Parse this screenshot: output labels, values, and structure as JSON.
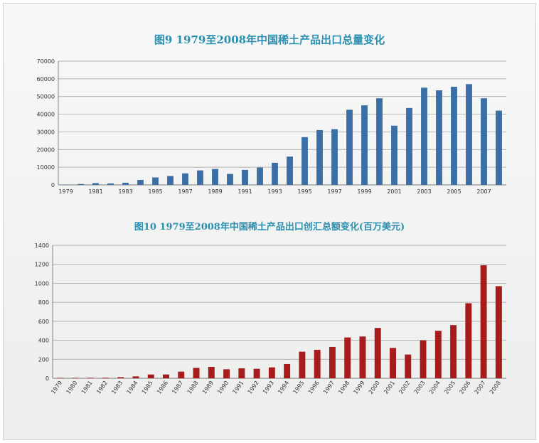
{
  "chart_data": [
    {
      "type": "bar",
      "title": "图9  1979至2008年中国稀土产品出口总量变化",
      "color": "#3a6ea5",
      "ylim": [
        0,
        70000
      ],
      "yticks": [
        0,
        10000,
        20000,
        30000,
        40000,
        50000,
        60000,
        70000
      ],
      "xtick_labels": [
        "1979",
        "1981",
        "1983",
        "1985",
        "1987",
        "1989",
        "1991",
        "1993",
        "1995",
        "1997",
        "1999",
        "2001",
        "2003",
        "2005",
        "2007"
      ],
      "categories": [
        "1979",
        "1980",
        "1981",
        "1982",
        "1983",
        "1984",
        "1985",
        "1986",
        "1987",
        "1988",
        "1989",
        "1990",
        "1991",
        "1992",
        "1993",
        "1994",
        "1995",
        "1996",
        "1997",
        "1998",
        "1999",
        "2000",
        "2001",
        "2002",
        "2003",
        "2004",
        "2005",
        "2006",
        "2007",
        "2008"
      ],
      "values": [
        200,
        500,
        1000,
        800,
        1200,
        2800,
        4200,
        5000,
        6500,
        8200,
        9000,
        6200,
        8500,
        9800,
        12500,
        16000,
        27000,
        31000,
        31500,
        42500,
        45000,
        49000,
        33500,
        43500,
        55000,
        53500,
        55500,
        57000,
        49000,
        42000
      ],
      "grid": true
    },
    {
      "type": "bar",
      "title": "图10  1979至2008年中国稀土产品出口创汇总额变化(百万美元)",
      "color": "#a61c1c",
      "ylim": [
        0,
        1400
      ],
      "yticks": [
        0,
        200,
        400,
        600,
        800,
        1000,
        1200,
        1400
      ],
      "categories": [
        "1979",
        "1980",
        "1981",
        "1982",
        "1983",
        "1984",
        "1985",
        "1986",
        "1987",
        "1988",
        "1989",
        "1990",
        "1991",
        "1992",
        "1993",
        "1994",
        "1995",
        "1996",
        "1997",
        "1998",
        "1999",
        "2000",
        "2001",
        "2002",
        "2003",
        "2004",
        "2005",
        "2006",
        "2007",
        "2008"
      ],
      "values": [
        5,
        5,
        6,
        6,
        12,
        20,
        40,
        40,
        70,
        110,
        120,
        95,
        105,
        100,
        115,
        150,
        280,
        300,
        330,
        430,
        440,
        530,
        320,
        250,
        400,
        500,
        560,
        790,
        1190,
        970
      ],
      "grid": true
    }
  ]
}
